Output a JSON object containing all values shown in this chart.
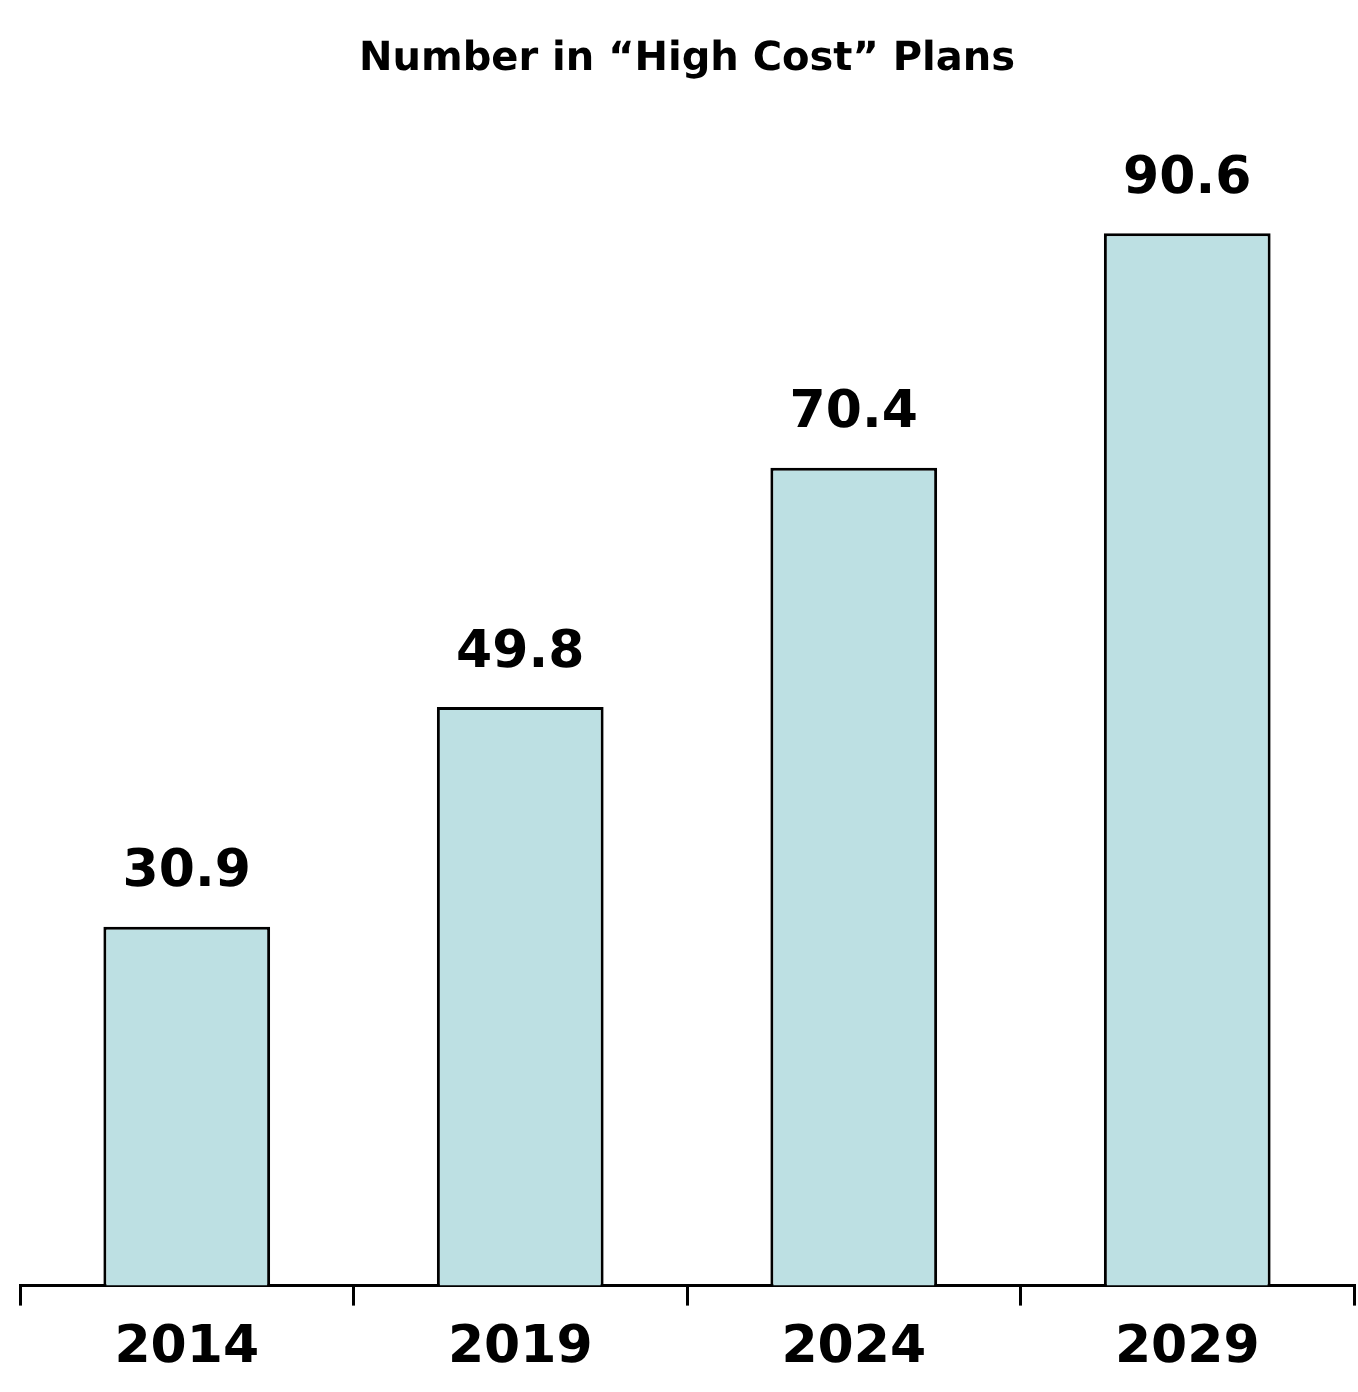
{
  "chart_data": {
    "type": "bar",
    "title": "Number in “High Cost” Plans",
    "categories": [
      "2014",
      "2019",
      "2024",
      "2029"
    ],
    "values": [
      30.9,
      49.8,
      70.4,
      90.6
    ],
    "color": "#bde0e3",
    "data_labels": true,
    "grid": false,
    "legend": false,
    "tick_labels": "x"
  }
}
